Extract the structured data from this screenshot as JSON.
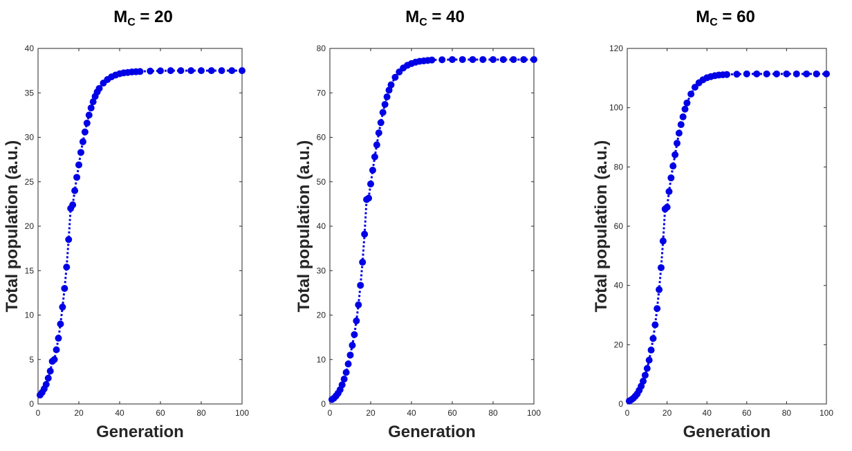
{
  "chart_data": [
    {
      "type": "scatter",
      "title_main": "M",
      "title_sub": "C",
      "title_rest": " = 20",
      "xlabel": "Generation",
      "ylabel": "Total population (a.u.)",
      "xlim": [
        0,
        100
      ],
      "ylim": [
        0,
        40
      ],
      "xticks": [
        "0",
        "20",
        "40",
        "60",
        "80",
        "100"
      ],
      "yticks": [
        "0",
        "5",
        "10",
        "15",
        "20",
        "25",
        "30",
        "35",
        "40"
      ],
      "series": [
        {
          "name": "Total population",
          "color": "#0000e6",
          "x": [
            1,
            2,
            3,
            4,
            5,
            6,
            7,
            8,
            9,
            10,
            11,
            12,
            13,
            14,
            15,
            16,
            17,
            18,
            19,
            20,
            21,
            22,
            23,
            24,
            25,
            26,
            27,
            28,
            29,
            30,
            32,
            34,
            36,
            38,
            40,
            42,
            44,
            46,
            48,
            50,
            55,
            60,
            65,
            70,
            75,
            80,
            85,
            90,
            95,
            100
          ],
          "y": [
            1.0,
            1.3,
            1.7,
            2.2,
            2.9,
            3.7,
            4.8,
            5.0,
            6.1,
            7.4,
            9.0,
            10.9,
            13.0,
            15.4,
            18.5,
            22.0,
            22.4,
            24.0,
            25.5,
            26.9,
            28.3,
            29.5,
            30.6,
            31.6,
            32.5,
            33.3,
            34.0,
            34.6,
            35.1,
            35.5,
            36.1,
            36.5,
            36.8,
            37.0,
            37.15,
            37.25,
            37.3,
            37.35,
            37.38,
            37.4,
            37.45,
            37.48,
            37.5,
            37.5,
            37.5,
            37.5,
            37.5,
            37.5,
            37.5,
            37.5
          ]
        }
      ]
    },
    {
      "type": "scatter",
      "title_main": "M",
      "title_sub": "C",
      "title_rest": " = 40",
      "xlabel": "Generation",
      "ylabel": "Total population (a.u.)",
      "xlim": [
        0,
        100
      ],
      "ylim": [
        0,
        80
      ],
      "xticks": [
        "0",
        "20",
        "40",
        "60",
        "80",
        "100"
      ],
      "yticks": [
        "0",
        "10",
        "20",
        "30",
        "40",
        "50",
        "60",
        "70",
        "80"
      ],
      "series": [
        {
          "name": "Total population",
          "color": "#0000e6",
          "x": [
            1,
            2,
            3,
            4,
            5,
            6,
            7,
            8,
            9,
            10,
            11,
            12,
            13,
            14,
            15,
            16,
            17,
            18,
            19,
            20,
            21,
            22,
            23,
            24,
            25,
            26,
            27,
            28,
            29,
            30,
            32,
            34,
            36,
            38,
            40,
            42,
            44,
            46,
            48,
            50,
            55,
            60,
            65,
            70,
            75,
            80,
            85,
            90,
            95,
            100
          ],
          "y": [
            1.0,
            1.3,
            1.8,
            2.4,
            3.2,
            4.3,
            5.6,
            7.1,
            9.0,
            11.0,
            13.2,
            15.6,
            18.7,
            22.3,
            26.7,
            31.9,
            38.2,
            46.0,
            46.3,
            49.5,
            52.6,
            55.6,
            58.3,
            61.0,
            63.3,
            65.6,
            67.4,
            69.1,
            70.6,
            71.8,
            73.5,
            74.7,
            75.6,
            76.2,
            76.6,
            76.9,
            77.1,
            77.2,
            77.3,
            77.4,
            77.45,
            77.5,
            77.5,
            77.5,
            77.5,
            77.5,
            77.5,
            77.5,
            77.5,
            77.5
          ]
        }
      ]
    },
    {
      "type": "scatter",
      "title_main": "M",
      "title_sub": "C",
      "title_rest": " = 60",
      "xlabel": "Generation",
      "ylabel": "Total population (a.u.)",
      "xlim": [
        0,
        100
      ],
      "ylim": [
        0,
        120
      ],
      "xticks": [
        "0",
        "20",
        "40",
        "60",
        "80",
        "100"
      ],
      "yticks": [
        "0",
        "20",
        "40",
        "60",
        "80",
        "100",
        "120"
      ],
      "series": [
        {
          "name": "Total population",
          "color": "#0000e6",
          "x": [
            1,
            2,
            3,
            4,
            5,
            6,
            7,
            8,
            9,
            10,
            11,
            12,
            13,
            14,
            15,
            16,
            17,
            18,
            19,
            20,
            21,
            22,
            23,
            24,
            25,
            26,
            27,
            28,
            29,
            30,
            32,
            34,
            36,
            38,
            40,
            42,
            44,
            46,
            48,
            50,
            55,
            60,
            65,
            70,
            75,
            80,
            85,
            90,
            95,
            100
          ],
          "y": [
            1.0,
            1.4,
            1.9,
            2.6,
            3.4,
            4.6,
            6.0,
            7.7,
            9.7,
            12.0,
            14.8,
            18.2,
            22.1,
            26.7,
            32.2,
            38.6,
            46.0,
            55.0,
            65.8,
            66.4,
            71.7,
            76.3,
            80.3,
            84.1,
            88.0,
            91.4,
            94.3,
            96.9,
            99.5,
            101.6,
            104.6,
            106.9,
            108.4,
            109.4,
            110.1,
            110.5,
            110.8,
            111.0,
            111.1,
            111.2,
            111.3,
            111.4,
            111.4,
            111.4,
            111.4,
            111.4,
            111.4,
            111.4,
            111.4,
            111.4
          ]
        }
      ]
    }
  ]
}
